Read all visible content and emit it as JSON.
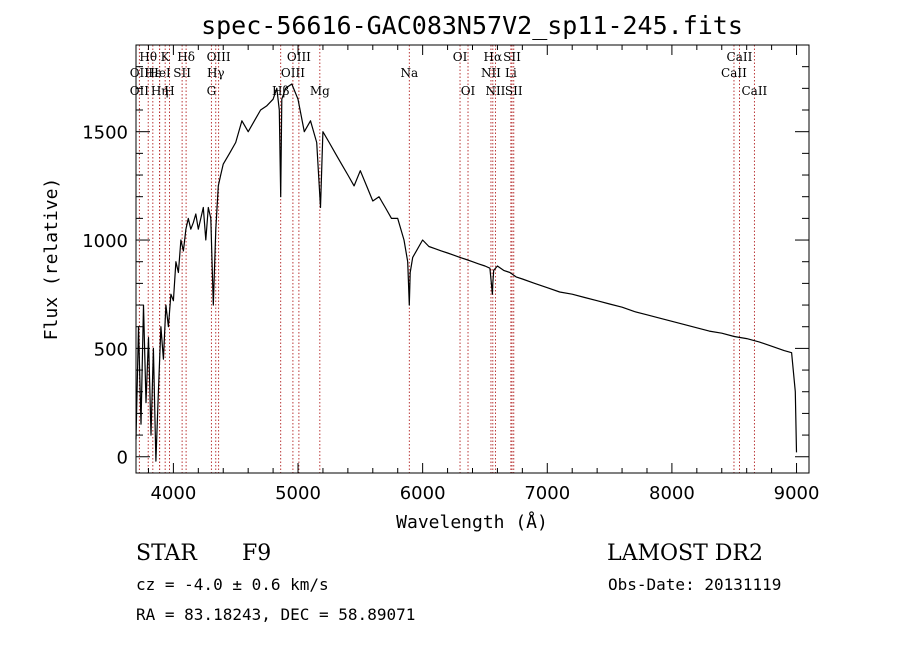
{
  "chart_data": {
    "type": "line",
    "title": "spec-56616-GAC083N57V2_sp11-245.fits",
    "xlabel": "Wavelength (Å)",
    "ylabel": "Flux (relative)",
    "xlim": [
      3700,
      9100
    ],
    "ylim": [
      -75,
      1900
    ],
    "xticks": [
      4000,
      5000,
      6000,
      7000,
      8000,
      9000
    ],
    "yticks": [
      0,
      500,
      1000,
      1500
    ],
    "series": [
      {
        "x": [
          3700,
          3720,
          3740,
          3760,
          3780,
          3800,
          3820,
          3840,
          3860,
          3880,
          3900,
          3920,
          3940,
          3960,
          3980,
          4000,
          4020,
          4040,
          4060,
          4080,
          4100,
          4120,
          4140,
          4160,
          4180,
          4200,
          4220,
          4240,
          4260,
          4280,
          4300,
          4320,
          4340,
          4360,
          4380,
          4400,
          4450,
          4500,
          4550,
          4600,
          4650,
          4700,
          4750,
          4800,
          4830,
          4850,
          4861,
          4870,
          4900,
          4950,
          5000,
          5050,
          5100,
          5150,
          5180,
          5200,
          5250,
          5300,
          5350,
          5400,
          5450,
          5500,
          5550,
          5600,
          5650,
          5700,
          5750,
          5800,
          5850,
          5880,
          5893,
          5900,
          5920,
          5950,
          6000,
          6050,
          6100,
          6150,
          6200,
          6250,
          6300,
          6350,
          6400,
          6450,
          6500,
          6540,
          6560,
          6563,
          6570,
          6600,
          6650,
          6700,
          6750,
          6800,
          6900,
          7000,
          7100,
          7200,
          7300,
          7400,
          7500,
          7600,
          7700,
          7800,
          7900,
          8000,
          8100,
          8200,
          8300,
          8400,
          8500,
          8600,
          8700,
          8800,
          8900,
          8960,
          8990,
          9000
        ],
        "y": [
          80,
          600,
          150,
          700,
          250,
          550,
          100,
          500,
          -20,
          300,
          600,
          450,
          700,
          600,
          750,
          720,
          900,
          850,
          1000,
          950,
          1050,
          1100,
          1050,
          1080,
          1120,
          1050,
          1100,
          1150,
          1000,
          1150,
          1100,
          700,
          1050,
          1250,
          1300,
          1350,
          1400,
          1450,
          1550,
          1500,
          1550,
          1600,
          1620,
          1650,
          1700,
          1600,
          1200,
          1650,
          1700,
          1720,
          1650,
          1500,
          1550,
          1450,
          1150,
          1500,
          1450,
          1400,
          1350,
          1300,
          1250,
          1320,
          1250,
          1180,
          1200,
          1150,
          1100,
          1100,
          1000,
          900,
          700,
          850,
          920,
          950,
          1000,
          970,
          960,
          950,
          940,
          930,
          920,
          910,
          900,
          890,
          880,
          870,
          750,
          800,
          860,
          880,
          860,
          850,
          830,
          820,
          800,
          780,
          760,
          750,
          735,
          720,
          705,
          690,
          670,
          655,
          640,
          625,
          610,
          595,
          580,
          570,
          555,
          545,
          530,
          510,
          490,
          480,
          300,
          20
        ]
      }
    ],
    "annotations": [
      {
        "label": "Hθ",
        "x": 3798,
        "row": 1
      },
      {
        "label": "OII",
        "x": 3727,
        "row": 2
      },
      {
        "label": "OII",
        "x": 3727,
        "row": 3
      },
      {
        "label": "Hε",
        "x": 3835,
        "row": 2
      },
      {
        "label": "HeI",
        "x": 3889,
        "row": 2
      },
      {
        "label": "K",
        "x": 3934,
        "row": 1
      },
      {
        "label": "Hη",
        "x": 3890,
        "row": 3
      },
      {
        "label": "H",
        "x": 3969,
        "row": 3
      },
      {
        "label": "SII",
        "x": 4070,
        "row": 2
      },
      {
        "label": "Hδ",
        "x": 4102,
        "row": 1
      },
      {
        "label": "OIII",
        "x": 4363,
        "row": 1
      },
      {
        "label": "Hγ",
        "x": 4340,
        "row": 2
      },
      {
        "label": "G",
        "x": 4305,
        "row": 3
      },
      {
        "label": "OIII",
        "x": 5007,
        "row": 1
      },
      {
        "label": "OIII",
        "x": 4959,
        "row": 2
      },
      {
        "label": "Hβ",
        "x": 4861,
        "row": 3
      },
      {
        "label": "Mg",
        "x": 5175,
        "row": 3
      },
      {
        "label": "Na",
        "x": 5893,
        "row": 2
      },
      {
        "label": "OI",
        "x": 6300,
        "row": 1
      },
      {
        "label": "OI",
        "x": 6364,
        "row": 3
      },
      {
        "label": "Hα",
        "x": 6563,
        "row": 1
      },
      {
        "label": "SII",
        "x": 6717,
        "row": 1
      },
      {
        "label": "NII",
        "x": 6548,
        "row": 2
      },
      {
        "label": "Li",
        "x": 6708,
        "row": 2
      },
      {
        "label": "NII",
        "x": 6584,
        "row": 3
      },
      {
        "label": "SII",
        "x": 6731,
        "row": 3
      },
      {
        "label": "CaII",
        "x": 8542,
        "row": 1
      },
      {
        "label": "CaII",
        "x": 8498,
        "row": 2
      },
      {
        "label": "CaII",
        "x": 8662,
        "row": 3
      }
    ],
    "line_color": "#000000",
    "marker_color": "#b22222"
  },
  "info": {
    "class": "STAR",
    "subclass": "F9",
    "survey": "LAMOST DR2",
    "cz": "cz = -4.0 ± 0.6 km/s",
    "obs_date": "Obs-Date: 20131119",
    "coords": "RA =  83.18243, DEC =  58.89071"
  }
}
